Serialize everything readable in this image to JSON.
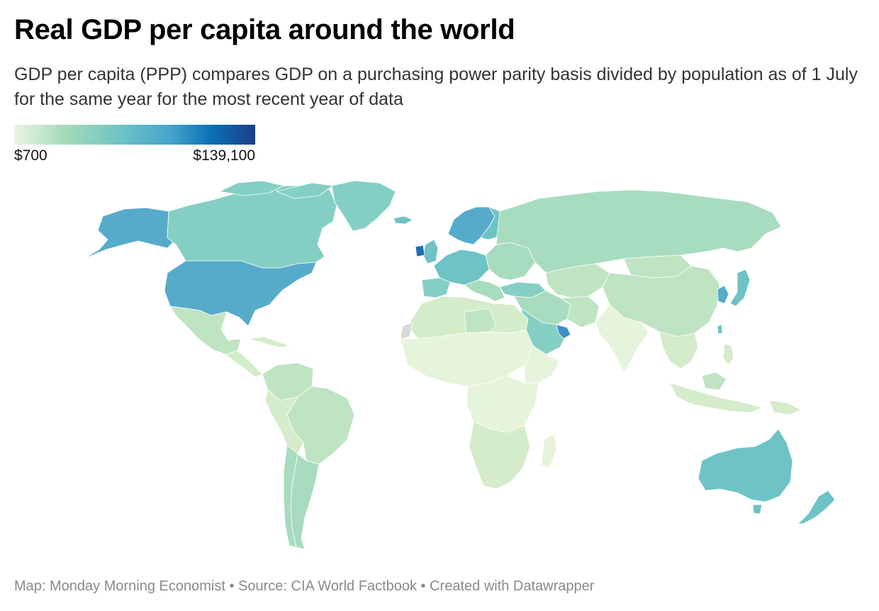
{
  "header": {
    "title": "Real GDP per capita around the world",
    "subtitle": "GDP per capita (PPP) compares GDP on a purchasing power parity basis divided by population as of 1 July for the same year for the most recent year of data"
  },
  "legend": {
    "min_label": "$700",
    "max_label": "$139,100",
    "colors": [
      "#e9f6e2",
      "#a7dcb9",
      "#6cc2c5",
      "#45a4cb",
      "#0b6fb5",
      "#1b3f8a"
    ]
  },
  "map": {
    "type": "choropleth",
    "variable": "GDP per capita (PPP)",
    "no_data_color": "#d9d9d9",
    "colors": {
      "very_low": "#e6f4dc",
      "low": "#d4ecca",
      "lower_mid": "#bfe4c2",
      "mid": "#a7dcbe",
      "upper_mid": "#84cfc4",
      "high": "#6ec3c6",
      "very_high": "#56abcb",
      "top": "#3f8fc4",
      "extreme": "#1f6fb2"
    }
  },
  "footer": {
    "credit": "Map: Monday Morning Economist • Source: CIA World Factbook • Created with Datawrapper"
  }
}
